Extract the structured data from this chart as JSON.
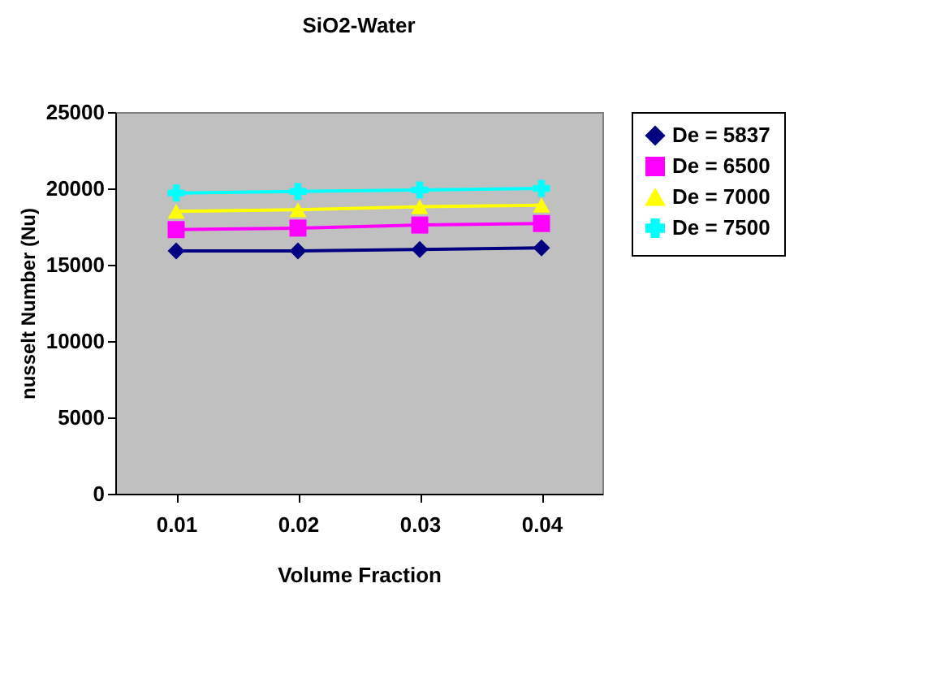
{
  "chart_data": {
    "type": "line",
    "title": "SiO2-Water",
    "xlabel": "Volume Fraction",
    "ylabel": "nusselt Number (Nu)",
    "categories": [
      "0.01",
      "0.02",
      "0.03",
      "0.04"
    ],
    "ylim": [
      0,
      25000
    ],
    "yticks": [
      0,
      5000,
      10000,
      15000,
      20000,
      25000
    ],
    "grid": false,
    "legend": "right",
    "series": [
      {
        "name": "De = 5837",
        "color": "#000080",
        "marker": "diamond",
        "values": [
          15900,
          15900,
          16000,
          16100
        ]
      },
      {
        "name": "De = 6500",
        "color": "#ff00ff",
        "marker": "square",
        "values": [
          17300,
          17400,
          17600,
          17700
        ]
      },
      {
        "name": "De = 7000",
        "color": "#ffff00",
        "marker": "triangle",
        "values": [
          18500,
          18600,
          18800,
          18900
        ]
      },
      {
        "name": "De = 7500",
        "color": "#00ffff",
        "marker": "cross",
        "values": [
          19700,
          19800,
          19900,
          20000
        ]
      }
    ]
  }
}
